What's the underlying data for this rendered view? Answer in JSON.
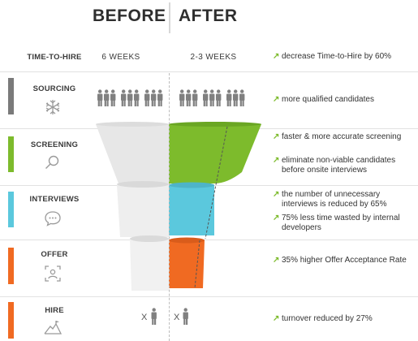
{
  "header": {
    "before": "BEFORE",
    "after": "AFTER"
  },
  "time_to_hire": {
    "label": "TIME-TO-HIRE",
    "before": "6 WEEKS",
    "after": "2-3 WEEKS",
    "note": "decrease Time-to-Hire by 60%"
  },
  "rows": [
    {
      "label": "SOURCING",
      "color": "#7a7a7a",
      "icon": "snowflake-network-icon",
      "notes": [
        "more qualified candidates"
      ]
    },
    {
      "label": "SCREENING",
      "color": "#7dbb2c",
      "icon": "magnifier-icon",
      "notes": [
        "faster & more accurate screening",
        "eliminate non-viable candidates before onsite interviews"
      ]
    },
    {
      "label": "INTERVIEWS",
      "color": "#5bc8dd",
      "icon": "chat-bubble-icon",
      "notes": [
        "the number of unnecessary interviews is reduced by 65%",
        "75% less time wasted by internal developers"
      ]
    },
    {
      "label": "OFFER",
      "color": "#f06a22",
      "icon": "person-frame-icon",
      "notes": [
        "35% higher Offer Acceptance Rate"
      ]
    },
    {
      "label": "HIRE",
      "color": "#f06a22",
      "icon": "mountain-flag-icon",
      "notes": [
        "turnover reduced by 27%"
      ]
    }
  ],
  "hire_marks": {
    "before": "X",
    "after": "X"
  },
  "colors": {
    "grey": "#7a7a7a",
    "green": "#7dbb2c",
    "blue": "#5bc8dd",
    "orange": "#f06a22",
    "arrow": "#7dbb2c",
    "funnel_left": "#e9e9e9"
  }
}
